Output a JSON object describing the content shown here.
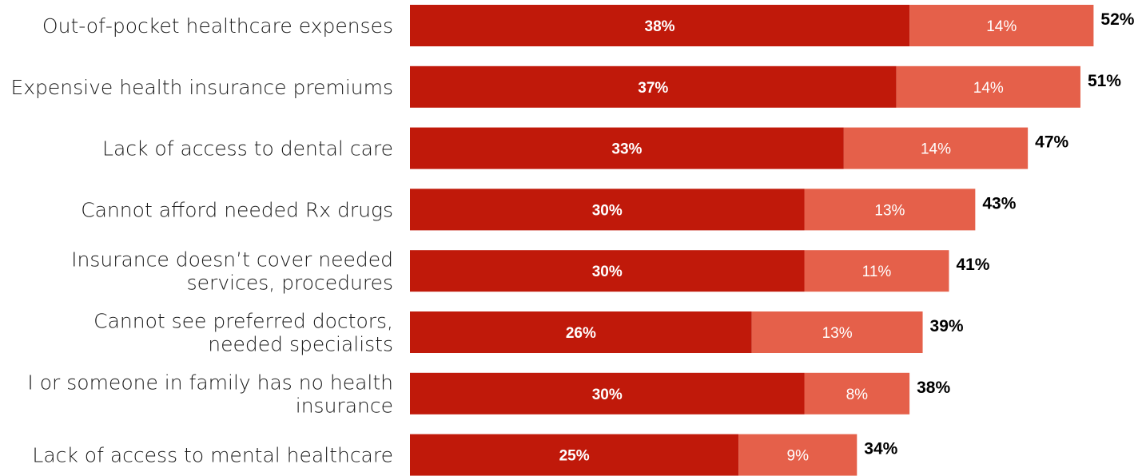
{
  "chart_data": {
    "type": "bar",
    "orientation": "horizontal",
    "stacked": true,
    "title": "",
    "xlabel": "",
    "ylabel": "",
    "xlim": [
      0,
      52
    ],
    "grid": false,
    "legend": "none",
    "categories": [
      [
        "Out-of-pocket healthcare expenses"
      ],
      [
        "Expensive health insurance premiums"
      ],
      [
        "Lack of access to dental care"
      ],
      [
        "Cannot afford needed Rx drugs"
      ],
      [
        "Insurance doesn’t cover needed",
        "services, procedures"
      ],
      [
        "Cannot see preferred doctors,",
        "needed specialists"
      ],
      [
        "I or someone in family has no health",
        "insurance"
      ],
      [
        "Lack of access to mental healthcare"
      ]
    ],
    "series": [
      {
        "values": [
          38,
          37,
          33,
          30,
          30,
          26,
          30,
          25
        ],
        "labels": [
          "38%",
          "37%",
          "33%",
          "30%",
          "30%",
          "26%",
          "30%",
          "25%"
        ],
        "color": "#c0190a"
      },
      {
        "values": [
          14,
          14,
          14,
          13,
          11,
          13,
          8,
          9
        ],
        "labels": [
          "14%",
          "14%",
          "14%",
          "13%",
          "11%",
          "13%",
          "8%",
          "9%"
        ],
        "color": "#e5604a"
      }
    ],
    "totals": {
      "values": [
        52,
        51,
        47,
        43,
        41,
        39,
        38,
        34
      ],
      "labels": [
        "52%",
        "51%",
        "47%",
        "43%",
        "41%",
        "39%",
        "38%",
        "34%"
      ]
    }
  }
}
